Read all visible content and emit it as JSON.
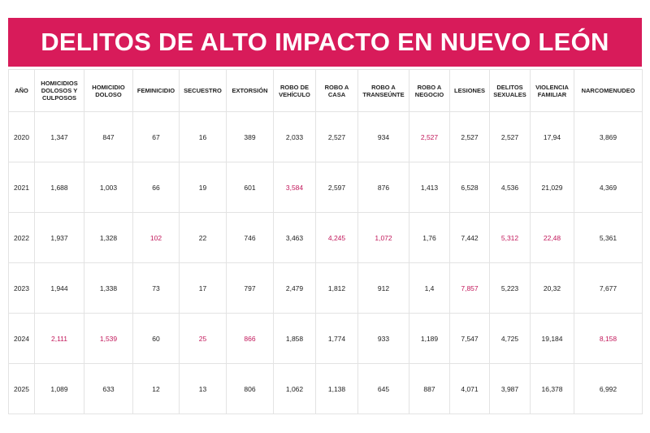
{
  "title": "DELITOS DE ALTO IMPACTO EN NUEVO LEÓN",
  "highlight_color": "#c2185b",
  "table": {
    "header": [
      "AÑO",
      "HOMICIDIOS DOLOSOS Y CULPOSOS",
      "HOMICIDIO DOLOSO",
      "FEMINICIDIO",
      "SECUESTRO",
      "EXTORSIÓN",
      "ROBO DE VEHÍCULO",
      "ROBO A CASA",
      "ROBO A TRANSEÚNTE",
      "ROBO A NEGOCIO",
      "LESIONES",
      "DELITOS SEXUALES",
      "VIOLENCIA FAMILIAR",
      "NARCOMENUDEO"
    ],
    "rows": [
      [
        "2020",
        "1,347",
        "847",
        "67",
        "16",
        "389",
        "2,033",
        "2,527",
        "934",
        "2,527",
        "2,527",
        "2,527",
        "17,94",
        "3,869"
      ],
      [
        "2021",
        "1,688",
        "1,003",
        "66",
        "19",
        "601",
        "3,584",
        "2,597",
        "876",
        "1,413",
        "6,528",
        "4,536",
        "21,029",
        "4,369"
      ],
      [
        "2022",
        "1,937",
        "1,328",
        "102",
        "22",
        "746",
        "3,463",
        "4,245",
        "1,072",
        "1,76",
        "7,442",
        "5,312",
        "22,48",
        "5,361"
      ],
      [
        "2023",
        "1,944",
        "1,338",
        "73",
        "17",
        "797",
        "2,479",
        "1,812",
        "912",
        "1,4",
        "7,857",
        "5,223",
        "20,32",
        "7,677"
      ],
      [
        "2024",
        "2,111",
        "1,539",
        "60",
        "25",
        "866",
        "1,858",
        "1,774",
        "933",
        "1,189",
        "7,547",
        "4,725",
        "19,184",
        "8,158"
      ],
      [
        "2025",
        "1,089",
        "633",
        "12",
        "13",
        "806",
        "1,062",
        "1,138",
        "645",
        "887",
        "4,071",
        "3,987",
        "16,378",
        "6,992"
      ]
    ],
    "highlights": [
      [
        0,
        9
      ],
      [
        1,
        6
      ],
      [
        2,
        3
      ],
      [
        2,
        7
      ],
      [
        2,
        8
      ],
      [
        2,
        11
      ],
      [
        2,
        12
      ],
      [
        3,
        10
      ],
      [
        4,
        1
      ],
      [
        4,
        2
      ],
      [
        4,
        4
      ],
      [
        4,
        5
      ],
      [
        4,
        13
      ]
    ]
  }
}
